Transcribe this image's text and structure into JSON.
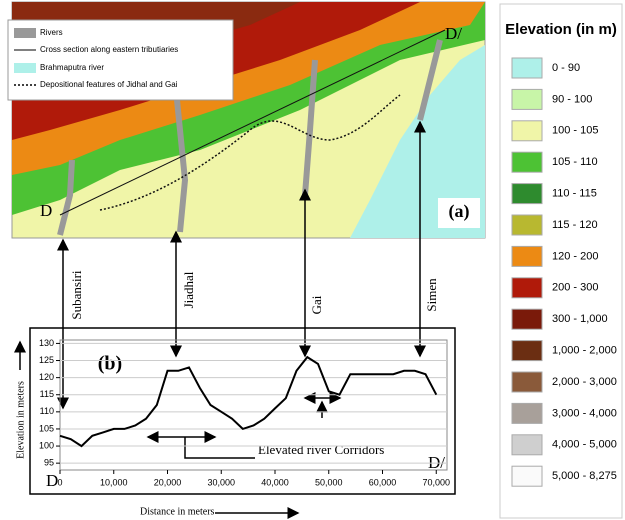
{
  "map": {
    "panel_label": "(a)",
    "start_label": "D",
    "end_label": "D/",
    "legend": [
      "Rivers",
      "Cross section along eastern tributiaries",
      "Brahmaputra river",
      "Depositional features of Jidhal and Gai"
    ]
  },
  "rivers": [
    "Subansiri",
    "Jiadhal",
    "Gai",
    "Simen"
  ],
  "elevation_legend": {
    "title": "Elevation (in m)",
    "items": [
      {
        "label": "0 - 90",
        "color": "#aef0e9"
      },
      {
        "label": "90 - 100",
        "color": "#c8f5a8"
      },
      {
        "label": "100 - 105",
        "color": "#f0f5a8"
      },
      {
        "label": "105 - 110",
        "color": "#4dc234"
      },
      {
        "label": "110 - 115",
        "color": "#2e8b2e"
      },
      {
        "label": "115 - 120",
        "color": "#b8b830"
      },
      {
        "label": "120 - 200",
        "color": "#ec8a14"
      },
      {
        "label": "200 - 300",
        "color": "#b01a0a"
      },
      {
        "label": "300 - 1,000",
        "color": "#7a1a0a"
      },
      {
        "label": "1,000 - 2,000",
        "color": "#6b2e12"
      },
      {
        "label": "2,000 - 3,000",
        "color": "#8a5a3a"
      },
      {
        "label": "3,000 - 4,000",
        "color": "#a8a09a"
      },
      {
        "label": "4,000 - 5,000",
        "color": "#cfcfcf"
      },
      {
        "label": "5,000 - 8,275",
        "color": "#fafafa"
      }
    ]
  },
  "chart_data": {
    "type": "line",
    "panel_label": "(b)",
    "start_label": "D",
    "end_label": "D/",
    "annotation": "Elevated river Corridors",
    "x_label": "Distance in meters",
    "y_label": "Elevation in meters",
    "x": [
      0,
      2000,
      4000,
      6000,
      8000,
      10000,
      12000,
      14000,
      16000,
      18000,
      20000,
      22000,
      24000,
      26000,
      28000,
      30000,
      32000,
      34000,
      36000,
      38000,
      40000,
      42000,
      44000,
      46000,
      48000,
      50000,
      52000,
      54000,
      56000,
      58000,
      60000,
      62000,
      64000,
      66000,
      68000,
      70000
    ],
    "series": [
      {
        "color": "#000000",
        "values": [
          103,
          102,
          100,
          103,
          104,
          105,
          105,
          106,
          108,
          112,
          122,
          122,
          123,
          117,
          112,
          110,
          108,
          105,
          106,
          108,
          111,
          114,
          122,
          126,
          124,
          116,
          115,
          121,
          121,
          121,
          121,
          121,
          122,
          122,
          121,
          115
        ]
      }
    ],
    "xlim": [
      0,
      72000
    ],
    "ylim": [
      93,
      131
    ],
    "xticks": [
      0,
      {
        "value": 10000,
        "label": "10,000"
      },
      {
        "value": 20000,
        "label": "20,000"
      },
      {
        "value": 30000,
        "label": "30,000"
      },
      {
        "value": 40000,
        "label": "40,000"
      },
      {
        "value": 50000,
        "label": "50,000"
      },
      {
        "value": 60000,
        "label": "60,000"
      },
      {
        "value": 70000,
        "label": "70,000"
      }
    ],
    "yticks": [
      95,
      100,
      105,
      110,
      115,
      120,
      125,
      130
    ],
    "grid": true
  }
}
